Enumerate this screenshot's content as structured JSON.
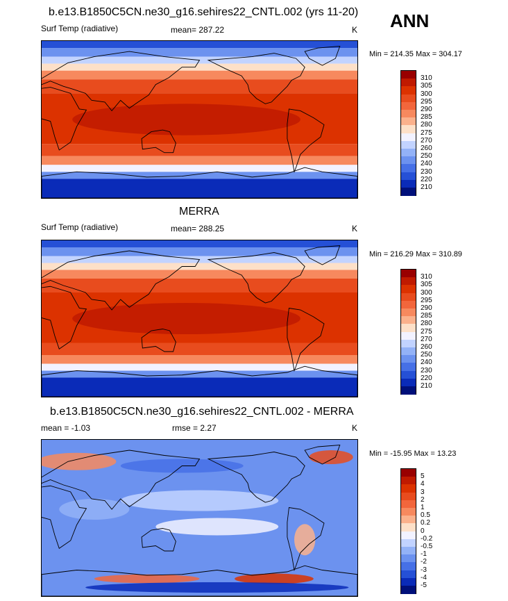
{
  "header": {
    "season": "ANN"
  },
  "panels": [
    {
      "title": "b.e13.B1850C5CN.ne30_g16.sehires22_CNTL.002 (yrs 11-20)",
      "variable": "Surf Temp (radiative)",
      "stat": "mean= 287.22",
      "rmse": "",
      "units": "K",
      "minmax": "Min = 214.35 Max = 304.17",
      "colorbar": {
        "labels": [
          "310",
          "305",
          "300",
          "295",
          "290",
          "285",
          "280",
          "275",
          "270",
          "260",
          "250",
          "240",
          "230",
          "220",
          "210"
        ],
        "colors": [
          "#990000",
          "#c01a00",
          "#dc3200",
          "#e84c1e",
          "#f2663c",
          "#f7895e",
          "#fbb18c",
          "#fde0c8",
          "#f2f2ff",
          "#c2d3ff",
          "#93b2f7",
          "#6c92ef",
          "#4670e6",
          "#2550d6",
          "#0a2bb8",
          "#00107a"
        ]
      }
    },
    {
      "title": "MERRA",
      "variable": "Surf Temp (radiative)",
      "stat": "mean= 288.25",
      "rmse": "",
      "units": "K",
      "minmax": "Min = 216.29 Max = 310.89",
      "colorbar": {
        "labels": [
          "310",
          "305",
          "300",
          "295",
          "290",
          "285",
          "280",
          "275",
          "270",
          "260",
          "250",
          "240",
          "230",
          "220",
          "210"
        ],
        "colors": [
          "#990000",
          "#c01a00",
          "#dc3200",
          "#e84c1e",
          "#f2663c",
          "#f7895e",
          "#fbb18c",
          "#fde0c8",
          "#f2f2ff",
          "#c2d3ff",
          "#93b2f7",
          "#6c92ef",
          "#4670e6",
          "#2550d6",
          "#0a2bb8",
          "#00107a"
        ]
      }
    },
    {
      "title": "b.e13.B1850C5CN.ne30_g16.sehires22_CNTL.002 - MERRA",
      "variable": "mean =  -1.03",
      "stat": "rmse =   2.27",
      "rmse": "",
      "units": "K",
      "minmax": "Min = -15.95 Max =  13.23",
      "colorbar": {
        "labels": [
          "5",
          "4",
          "3",
          "2",
          "1",
          "0.5",
          "0.2",
          "0",
          "-0.2",
          "-0.5",
          "-1",
          "-2",
          "-3",
          "-4",
          "-5"
        ],
        "colors": [
          "#990000",
          "#c01a00",
          "#dc3200",
          "#e84c1e",
          "#f2663c",
          "#f7895e",
          "#fbb18c",
          "#fde0c8",
          "#f2f2ff",
          "#c2d3ff",
          "#93b2f7",
          "#6c92ef",
          "#4670e6",
          "#2550d6",
          "#0a2bb8",
          "#00107a"
        ]
      }
    }
  ]
}
